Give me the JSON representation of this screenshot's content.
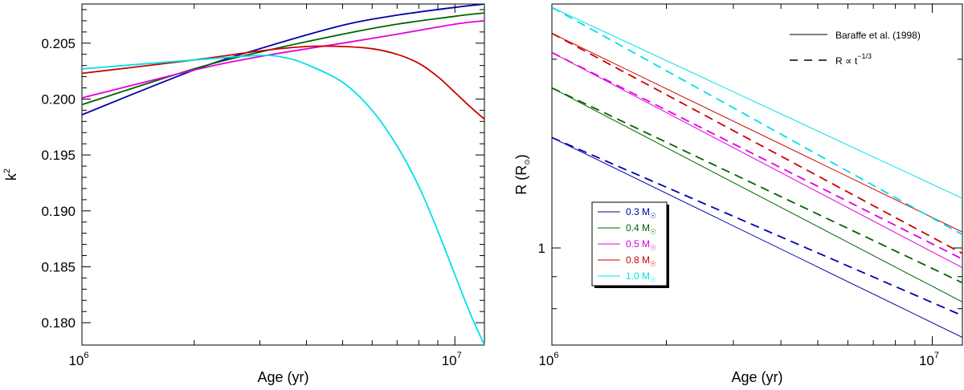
{
  "chart_data": [
    {
      "type": "line",
      "title": "",
      "xlabel": "Age (yr)",
      "ylabel": "k",
      "ylabel_superscript": "2",
      "xscale": "log",
      "xlim": [
        1000000,
        12000000
      ],
      "ylim": [
        0.178,
        0.2085
      ],
      "xtick_labels": [
        {
          "base": "10",
          "exp": "6"
        },
        {
          "base": "10",
          "exp": "7"
        }
      ],
      "yticks": [
        "0.180",
        "0.185",
        "0.190",
        "0.195",
        "0.200",
        "0.205"
      ],
      "grid": false,
      "series": [
        {
          "name": "0.3 M☉",
          "color": "#0000aa",
          "x": [
            1000000,
            2000000,
            3000000,
            5000000,
            7000000,
            10000000,
            12000000
          ],
          "y": [
            0.1986,
            0.2026,
            0.2045,
            0.2066,
            0.2075,
            0.2082,
            0.2085
          ]
        },
        {
          "name": "0.4 M☉",
          "color": "#006400",
          "x": [
            1000000,
            2000000,
            3000000,
            5000000,
            7000000,
            10000000,
            12000000
          ],
          "y": [
            0.1995,
            0.2027,
            0.2042,
            0.2058,
            0.2067,
            0.2074,
            0.2077
          ]
        },
        {
          "name": "0.5 M☉",
          "color": "#e000e0",
          "x": [
            1000000,
            2000000,
            3000000,
            5000000,
            7000000,
            10000000,
            12000000
          ],
          "y": [
            0.2001,
            0.2026,
            0.2038,
            0.205,
            0.2058,
            0.2067,
            0.207
          ]
        },
        {
          "name": "0.8 M☉",
          "color": "#cc0000",
          "x": [
            1000000,
            2000000,
            3000000,
            4000000,
            5000000,
            6000000,
            7000000,
            8000000,
            9000000,
            10000000,
            11000000,
            12000000
          ],
          "y": [
            0.2023,
            0.2035,
            0.2043,
            0.2047,
            0.2047,
            0.2045,
            0.204,
            0.2032,
            0.202,
            0.2006,
            0.1993,
            0.1982
          ]
        },
        {
          "name": "1.0 M☉",
          "color": "#00e0e8",
          "x": [
            1000000,
            2000000,
            3000000,
            3500000,
            4000000,
            5000000,
            6000000,
            7000000,
            8000000,
            9000000,
            10000000,
            11000000,
            12000000
          ],
          "y": [
            0.2027,
            0.2035,
            0.2039,
            0.2037,
            0.2031,
            0.2015,
            0.199,
            0.1958,
            0.1922,
            0.1882,
            0.1843,
            0.1808,
            0.178
          ]
        }
      ]
    },
    {
      "type": "line",
      "title": "",
      "xlabel": "Age (yr)",
      "ylabel": "R (R",
      "ylabel_sub": "⊙",
      "ylabel_close": ")",
      "xscale": "log",
      "yscale": "log",
      "xlim": [
        1000000,
        12000000
      ],
      "ylim": [
        0.7,
        2.45
      ],
      "xtick_labels": [
        {
          "base": "10",
          "exp": "6"
        },
        {
          "base": "10",
          "exp": "7"
        }
      ],
      "yticks": [
        "1"
      ],
      "grid": false,
      "style_legend": [
        {
          "label": "Baraffe et al. (1998)",
          "dash": "solid"
        },
        {
          "label": "R ∝ t",
          "exp": "−1/3",
          "dash": "dashed"
        }
      ],
      "legend_position": "center-left",
      "series": [
        {
          "name": "0.3 M☉",
          "color": "#0000aa",
          "baraffe": [
            [
              1000000,
              1.5
            ],
            [
              12000000,
              0.72
            ]
          ],
          "power_law": [
            [
              1000000,
              1.5
            ],
            [
              12000000,
              0.78
            ]
          ]
        },
        {
          "name": "0.4 M☉",
          "color": "#006400",
          "baraffe": [
            [
              1000000,
              1.8
            ],
            [
              12000000,
              0.82
            ]
          ],
          "power_law": [
            [
              1000000,
              1.8
            ],
            [
              12000000,
              0.88
            ]
          ]
        },
        {
          "name": "0.5 M☉",
          "color": "#e000e0",
          "baraffe": [
            [
              1000000,
              2.05
            ],
            [
              12000000,
              0.93
            ]
          ],
          "power_law": [
            [
              1000000,
              2.05
            ],
            [
              12000000,
              0.96
            ]
          ]
        },
        {
          "name": "0.8 M☉",
          "color": "#cc0000",
          "baraffe": [
            [
              1000000,
              2.2
            ],
            [
              12000000,
              1.06
            ]
          ],
          "power_law": [
            [
              1000000,
              2.2
            ],
            [
              12000000,
              0.98
            ]
          ]
        },
        {
          "name": "1.0 M☉",
          "color": "#00e0e8",
          "baraffe": [
            [
              1000000,
              2.42
            ],
            [
              12000000,
              1.2
            ]
          ],
          "power_law": [
            [
              1000000,
              2.42
            ],
            [
              12000000,
              1.05
            ]
          ]
        }
      ]
    }
  ]
}
